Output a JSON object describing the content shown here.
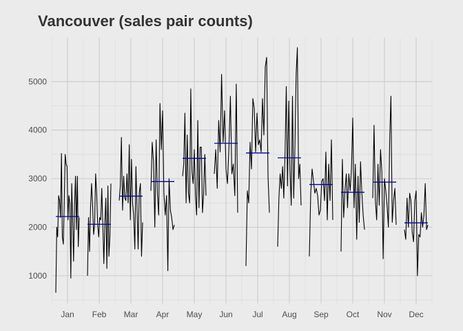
{
  "chart_data": {
    "type": "line",
    "title": "Vancouver (sales pair counts)",
    "xlabel": "",
    "ylabel": "",
    "ylim": [
      430,
      5900
    ],
    "y_ticks": [
      1000,
      2000,
      3000,
      4000,
      5000
    ],
    "y_tick_labels": [
      "1000",
      "2000",
      "3000",
      "4000",
      "5000"
    ],
    "months": [
      "Jan",
      "Feb",
      "Mar",
      "Apr",
      "May",
      "Jun",
      "Jul",
      "Aug",
      "Sep",
      "Oct",
      "Nov",
      "Dec"
    ],
    "grid": true,
    "series": [
      {
        "role": "daily-counts-by-month",
        "color": "#000000",
        "values": [
          [
            650,
            2000,
            1800,
            2650,
            2550,
            2200,
            3520,
            1800,
            1650,
            2450,
            3500,
            3300,
            3250,
            2150,
            2650,
            2500,
            950,
            2900,
            2100,
            1300,
            2450,
            3050,
            1950,
            3050,
            1600,
            2200
          ],
          [
            1000,
            2200,
            1500,
            2400,
            2900,
            2450,
            1850,
            2050,
            3100,
            2700,
            2050,
            1800,
            2200,
            2150,
            2800,
            2050,
            1250,
            2050,
            2600,
            1150,
            2850,
            1400,
            1800,
            2900
          ],
          [
            2550,
            2850,
            3850,
            2350,
            3050,
            2600,
            2550,
            3100,
            2500,
            3700,
            2150,
            3400,
            2500,
            2250,
            1550,
            3250,
            2400,
            1550,
            2700,
            2900,
            1400,
            2100
          ],
          [
            2750,
            3750,
            3350,
            2000,
            3800,
            2700,
            2250,
            4550,
            3600,
            4400,
            2700,
            2250,
            2650,
            1100,
            3000,
            2350,
            2200,
            1950,
            2050
          ],
          [
            3050,
            3300,
            4350,
            2500,
            3900,
            2700,
            2500,
            4850,
            3150,
            2900,
            3600,
            2650,
            2250,
            4200,
            2400,
            3650,
            3650,
            2300,
            2700,
            3500,
            2650
          ],
          [
            3100,
            3600,
            2800,
            4200,
            3550,
            5150,
            3750,
            4400,
            3200,
            2900,
            3650,
            4700,
            3100,
            3300,
            2650,
            4950,
            2300
          ],
          [
            1200,
            2750,
            2500,
            3750,
            3200,
            4650,
            4450,
            3550,
            4350,
            3700,
            3800,
            3550,
            4650,
            3900,
            5300,
            5500,
            3050,
            2300
          ],
          [
            1600,
            2600,
            3100,
            2800,
            3250,
            2600,
            3500,
            4900,
            2850,
            4600,
            3200,
            2450,
            4700,
            2600,
            3700,
            5150,
            5700,
            3000,
            3300,
            2450
          ],
          [
            1400,
            2700,
            3200,
            2950,
            2700,
            2800,
            2650,
            2250,
            2350,
            2950,
            3000,
            2550,
            3550,
            2150,
            3300,
            2550,
            3800,
            2150
          ],
          [
            1500,
            3400,
            2200,
            2750,
            3100,
            2400,
            3100,
            2750,
            3200,
            4250,
            2400,
            3300,
            1750,
            3050,
            2100,
            3350,
            2700,
            2250,
            1950
          ],
          [
            2600,
            4100,
            2550,
            2150,
            3300,
            2450,
            3600,
            3150,
            1350,
            3000,
            2750,
            2450,
            2000,
            3800,
            4700,
            2100,
            2550,
            2800,
            2050
          ],
          [
            1950,
            1750,
            2600,
            2000,
            2700,
            2550,
            1900,
            1700,
            2550,
            2750,
            1000,
            1850,
            1800,
            2300,
            2000,
            2250,
            2900,
            1950,
            2050
          ]
        ]
      },
      {
        "role": "monthly-mean",
        "color": "#0000aa",
        "values": [
          2220,
          2060,
          2640,
          2940,
          3420,
          3730,
          3530,
          3430,
          2880,
          2720,
          2930,
          2090
        ]
      }
    ]
  }
}
